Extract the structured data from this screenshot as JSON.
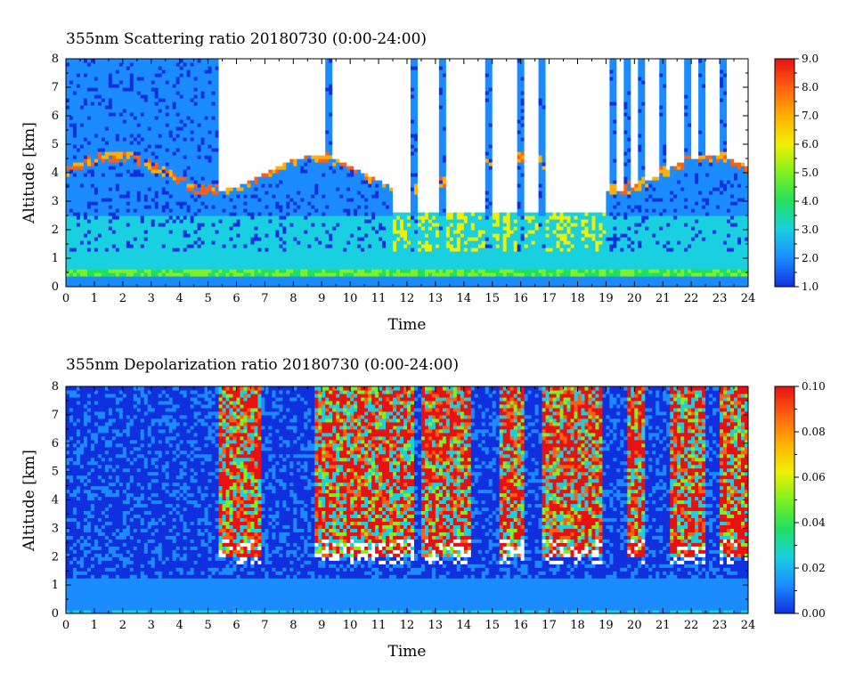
{
  "chart_data": [
    {
      "type": "heatmap",
      "title": "355nm Scattering ratio  20180730 (0:00-24:00)",
      "xlabel": "Time",
      "ylabel": "Altitude [km]",
      "xlim": [
        0,
        24
      ],
      "ylim": [
        0,
        8
      ],
      "x_ticks": [
        "0",
        "1",
        "2",
        "3",
        "4",
        "5",
        "6",
        "7",
        "8",
        "9",
        "10",
        "11",
        "12",
        "13",
        "14",
        "15",
        "16",
        "17",
        "18",
        "19",
        "20",
        "21",
        "22",
        "23",
        "24"
      ],
      "y_ticks": [
        "0",
        "1",
        "2",
        "3",
        "4",
        "5",
        "6",
        "7",
        "8"
      ],
      "colorbar": {
        "range": [
          1.0,
          9.0
        ],
        "ticks": [
          "1.0",
          "2.0",
          "3.0",
          "4.0",
          "5.0",
          "6.0",
          "7.0",
          "8.0",
          "9.0"
        ],
        "colors": [
          "#1030e0",
          "#1a8cff",
          "#19d0e0",
          "#20e060",
          "#80f020",
          "#f0f000",
          "#ffb000",
          "#ff6010",
          "#e81010"
        ]
      },
      "cloud_top_km": 4.0,
      "boundary_layer_km": 0.6,
      "high_signal_columns_h": [
        0.2,
        0.5,
        1.0,
        1.6,
        2.1,
        5.3,
        9.3,
        12.3,
        13.3,
        14.9,
        16.0,
        16.7,
        19.3,
        19.8,
        20.3,
        21.0,
        21.9,
        22.4,
        23.1
      ]
    },
    {
      "type": "heatmap",
      "title": "355nm Depolarization ratio  20180730 (0:00-24:00)",
      "xlabel": "Time",
      "ylabel": "Altitude [km]",
      "xlim": [
        0,
        24
      ],
      "ylim": [
        0,
        8
      ],
      "x_ticks": [
        "0",
        "1",
        "2",
        "3",
        "4",
        "5",
        "6",
        "7",
        "8",
        "9",
        "10",
        "11",
        "12",
        "13",
        "14",
        "15",
        "16",
        "17",
        "18",
        "19",
        "20",
        "21",
        "22",
        "23",
        "24"
      ],
      "y_ticks": [
        "0",
        "1",
        "2",
        "3",
        "4",
        "5",
        "6",
        "7",
        "8"
      ],
      "colorbar": {
        "range": [
          0.0,
          0.1
        ],
        "ticks": [
          "0.00",
          "0.02",
          "0.04",
          "0.06",
          "0.08",
          "0.10"
        ],
        "colors": [
          "#1030e0",
          "#1a8cff",
          "#19d0e0",
          "#20e060",
          "#80f020",
          "#f0f000",
          "#ffb000",
          "#ff6010",
          "#e81010"
        ]
      },
      "noisy_segments_h": [
        [
          5.4,
          6.9
        ],
        [
          8.8,
          12.3
        ],
        [
          12.5,
          14.2
        ],
        [
          15.3,
          16.1
        ],
        [
          16.8,
          18.9
        ],
        [
          19.8,
          20.4
        ],
        [
          21.2,
          22.5
        ],
        [
          23.0,
          24.0
        ]
      ]
    }
  ]
}
